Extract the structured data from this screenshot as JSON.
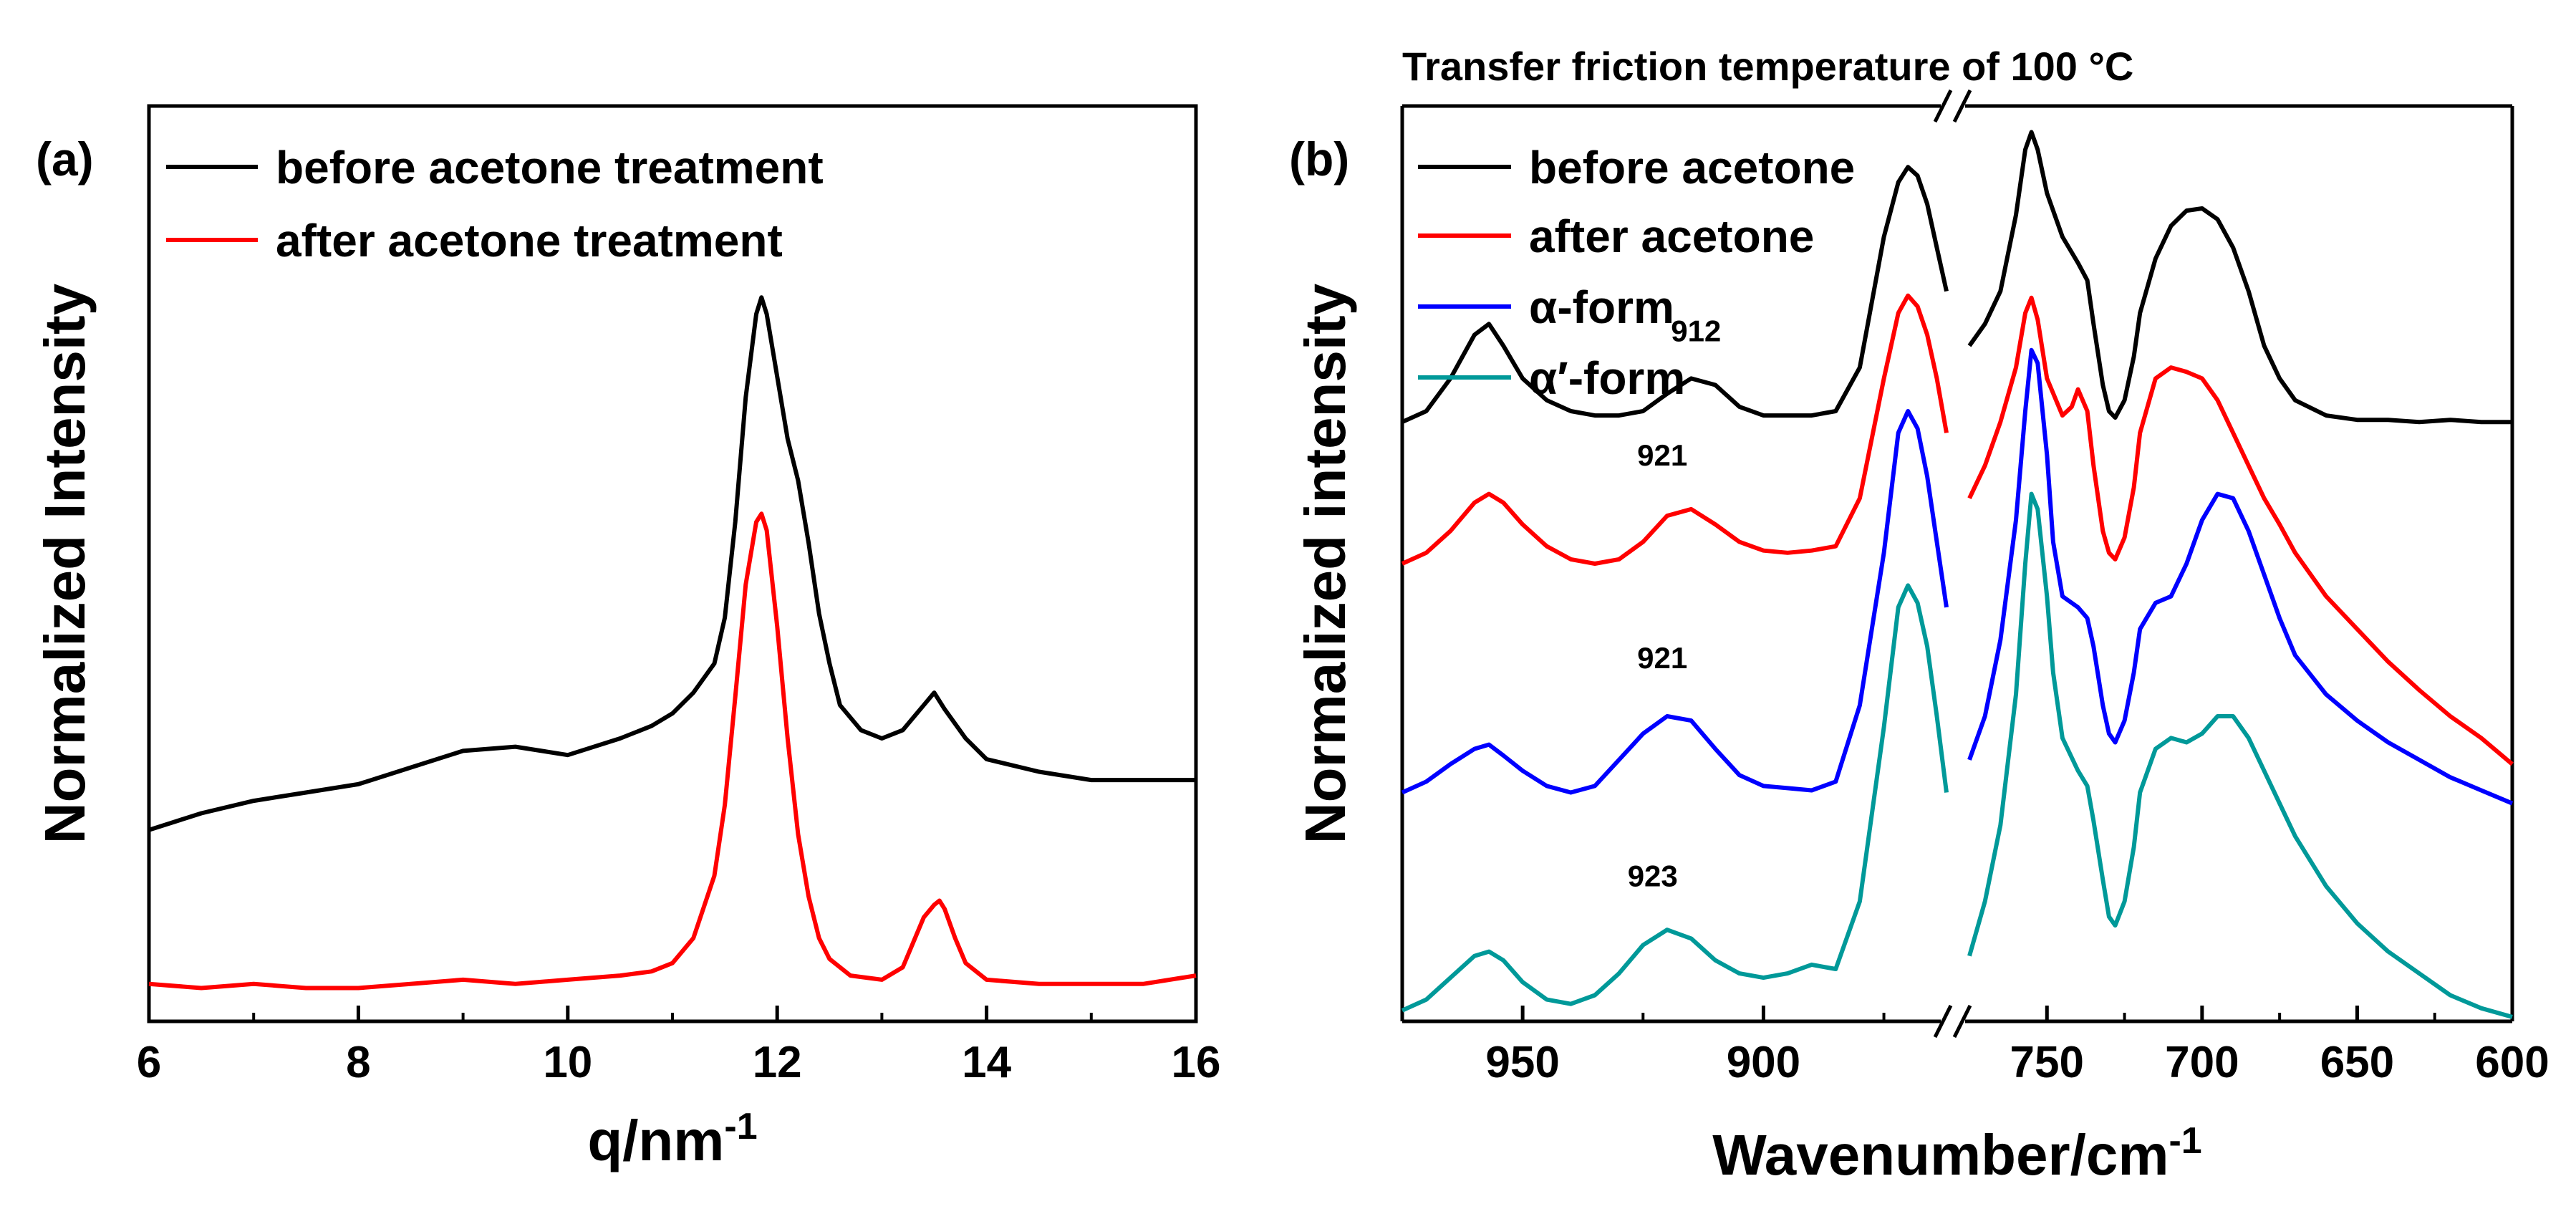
{
  "figure": {
    "panel_a_label": "(a)",
    "panel_b_label": "(b)",
    "title_b": "Transfer friction temperature of 100 °C"
  },
  "chart_data": [
    {
      "type": "line",
      "panel": "(a)",
      "title": "",
      "xlabel": "q/nm-1",
      "xlabel_main": "q/nm",
      "xlabel_sup": "-1",
      "ylabel": "Normalized Intensity",
      "xlim": [
        6,
        16
      ],
      "ylim": [
        0,
        2.2
      ],
      "xticks": [
        "6",
        "8",
        "10",
        "12",
        "14",
        "16"
      ],
      "legend_position": "top-left",
      "series": [
        {
          "name": "before acetone treatment",
          "color": "#000000",
          "x": [
            6.0,
            6.5,
            7.0,
            7.5,
            8.0,
            8.5,
            9.0,
            9.5,
            10.0,
            10.5,
            10.8,
            11.0,
            11.2,
            11.4,
            11.5,
            11.6,
            11.7,
            11.8,
            11.85,
            11.9,
            12.0,
            12.1,
            12.2,
            12.3,
            12.4,
            12.5,
            12.6,
            12.8,
            13.0,
            13.2,
            13.4,
            13.5,
            13.6,
            13.8,
            14.0,
            14.5,
            15.0,
            15.5,
            16.0
          ],
          "y": [
            0.46,
            0.5,
            0.53,
            0.55,
            0.57,
            0.61,
            0.65,
            0.66,
            0.64,
            0.68,
            0.71,
            0.74,
            0.79,
            0.86,
            0.97,
            1.2,
            1.5,
            1.7,
            1.74,
            1.7,
            1.55,
            1.4,
            1.3,
            1.15,
            0.98,
            0.86,
            0.76,
            0.7,
            0.68,
            0.7,
            0.76,
            0.79,
            0.75,
            0.68,
            0.63,
            0.6,
            0.58,
            0.58,
            0.58
          ]
        },
        {
          "name": "after acetone treatment",
          "color": "#ff0000",
          "x": [
            6.0,
            6.5,
            7.0,
            7.5,
            8.0,
            8.5,
            9.0,
            9.5,
            10.0,
            10.5,
            10.8,
            11.0,
            11.2,
            11.4,
            11.5,
            11.6,
            11.7,
            11.8,
            11.85,
            11.9,
            12.0,
            12.1,
            12.2,
            12.3,
            12.4,
            12.5,
            12.7,
            13.0,
            13.2,
            13.3,
            13.4,
            13.5,
            13.55,
            13.6,
            13.7,
            13.8,
            14.0,
            14.5,
            15.0,
            15.5,
            16.0
          ],
          "y": [
            0.09,
            0.08,
            0.09,
            0.08,
            0.08,
            0.09,
            0.1,
            0.09,
            0.1,
            0.11,
            0.12,
            0.14,
            0.2,
            0.35,
            0.52,
            0.78,
            1.05,
            1.2,
            1.22,
            1.18,
            0.95,
            0.68,
            0.45,
            0.3,
            0.2,
            0.15,
            0.11,
            0.1,
            0.13,
            0.19,
            0.25,
            0.28,
            0.29,
            0.27,
            0.2,
            0.14,
            0.1,
            0.09,
            0.09,
            0.09,
            0.11
          ]
        }
      ]
    },
    {
      "type": "line",
      "panel": "(b)",
      "title": "Transfer friction temperature of 100 °C",
      "xlabel": "Wavenumber/cm-1",
      "xlabel_main": "Wavenumber/cm",
      "xlabel_sup": "-1",
      "ylabel": "Normalized intensity",
      "axis_break": [
        862,
        775
      ],
      "xlim_left": [
        975,
        862
      ],
      "xlim_right": [
        775,
        600
      ],
      "ylim": [
        0,
        4.2
      ],
      "xticks_left": [
        "950",
        "900"
      ],
      "xticks_right": [
        "750",
        "700",
        "650",
        "600"
      ],
      "legend_position": "top-left",
      "series": [
        {
          "name": "before acetone",
          "color": "#000000",
          "segments": [
            {
              "x": [
                975,
                970,
                965,
                960,
                957,
                954,
                950,
                945,
                940,
                935,
                930,
                925,
                920,
                915,
                910,
                905,
                900,
                895,
                890,
                885,
                880,
                875,
                872,
                870,
                868,
                866,
                864,
                862
              ],
              "y": [
                2.75,
                2.8,
                2.95,
                3.15,
                3.2,
                3.1,
                2.95,
                2.85,
                2.8,
                2.78,
                2.78,
                2.8,
                2.88,
                2.95,
                2.92,
                2.82,
                2.78,
                2.78,
                2.78,
                2.8,
                3.0,
                3.6,
                3.85,
                3.92,
                3.88,
                3.75,
                3.55,
                3.35
              ]
            },
            {
              "x": [
                775,
                770,
                765,
                760,
                757,
                755,
                753,
                750,
                745,
                740,
                737,
                735,
                732,
                730,
                728,
                725,
                722,
                720,
                715,
                710,
                705,
                700,
                695,
                690,
                685,
                680,
                675,
                670,
                660,
                650,
                640,
                630,
                620,
                610,
                600
              ],
              "y": [
                3.1,
                3.2,
                3.35,
                3.7,
                4.0,
                4.08,
                4.0,
                3.8,
                3.6,
                3.48,
                3.4,
                3.2,
                2.92,
                2.8,
                2.77,
                2.85,
                3.05,
                3.25,
                3.5,
                3.65,
                3.72,
                3.73,
                3.68,
                3.55,
                3.35,
                3.1,
                2.95,
                2.85,
                2.78,
                2.76,
                2.76,
                2.75,
                2.76,
                2.75,
                2.75
              ]
            }
          ]
        },
        {
          "name": "after acetone",
          "color": "#ff0000",
          "segments": [
            {
              "x": [
                975,
                970,
                965,
                960,
                957,
                954,
                950,
                945,
                940,
                935,
                930,
                925,
                920,
                915,
                910,
                905,
                900,
                895,
                890,
                885,
                880,
                875,
                872,
                870,
                868,
                866,
                864,
                862
              ],
              "y": [
                2.1,
                2.15,
                2.25,
                2.38,
                2.42,
                2.38,
                2.28,
                2.18,
                2.12,
                2.1,
                2.12,
                2.2,
                2.32,
                2.35,
                2.28,
                2.2,
                2.16,
                2.15,
                2.16,
                2.18,
                2.4,
                2.95,
                3.25,
                3.33,
                3.28,
                3.15,
                2.95,
                2.7
              ]
            },
            {
              "x": [
                775,
                770,
                765,
                760,
                757,
                755,
                753,
                750,
                745,
                742,
                740,
                737,
                735,
                732,
                730,
                728,
                725,
                722,
                720,
                715,
                710,
                705,
                700,
                695,
                690,
                685,
                680,
                675,
                670,
                660,
                650,
                640,
                630,
                620,
                610,
                600
              ],
              "y": [
                2.4,
                2.55,
                2.75,
                3.0,
                3.25,
                3.32,
                3.22,
                2.95,
                2.78,
                2.82,
                2.9,
                2.8,
                2.55,
                2.25,
                2.15,
                2.12,
                2.22,
                2.45,
                2.7,
                2.95,
                3.0,
                2.98,
                2.95,
                2.85,
                2.7,
                2.55,
                2.4,
                2.28,
                2.15,
                1.95,
                1.8,
                1.65,
                1.52,
                1.4,
                1.3,
                1.18
              ]
            }
          ]
        },
        {
          "name": "α-form",
          "color": "#0000ff",
          "segments": [
            {
              "x": [
                975,
                970,
                965,
                960,
                957,
                954,
                950,
                945,
                940,
                935,
                930,
                925,
                920,
                915,
                910,
                905,
                900,
                895,
                890,
                885,
                880,
                875,
                872,
                870,
                868,
                866,
                864,
                862
              ],
              "y": [
                1.05,
                1.1,
                1.18,
                1.25,
                1.27,
                1.22,
                1.15,
                1.08,
                1.05,
                1.08,
                1.2,
                1.32,
                1.4,
                1.38,
                1.25,
                1.13,
                1.08,
                1.07,
                1.06,
                1.1,
                1.45,
                2.15,
                2.7,
                2.8,
                2.72,
                2.5,
                2.2,
                1.9
              ]
            },
            {
              "x": [
                775,
                770,
                765,
                760,
                757,
                755,
                753,
                750,
                748,
                745,
                740,
                737,
                735,
                732,
                730,
                728,
                725,
                722,
                720,
                715,
                710,
                705,
                700,
                695,
                690,
                685,
                680,
                675,
                670,
                660,
                650,
                640,
                630,
                620,
                610,
                600
              ],
              "y": [
                1.2,
                1.4,
                1.75,
                2.3,
                2.8,
                3.08,
                3.02,
                2.6,
                2.2,
                1.95,
                1.9,
                1.85,
                1.72,
                1.45,
                1.32,
                1.28,
                1.38,
                1.6,
                1.8,
                1.92,
                1.95,
                2.1,
                2.3,
                2.42,
                2.4,
                2.25,
                2.05,
                1.85,
                1.68,
                1.5,
                1.38,
                1.28,
                1.2,
                1.12,
                1.06,
                1.0
              ]
            }
          ]
        },
        {
          "name": "α′-form",
          "color": "#009999",
          "segments": [
            {
              "x": [
                975,
                970,
                965,
                960,
                957,
                954,
                950,
                945,
                940,
                935,
                930,
                925,
                920,
                915,
                910,
                905,
                900,
                895,
                890,
                885,
                880,
                875,
                872,
                870,
                868,
                866,
                864,
                862
              ],
              "y": [
                0.05,
                0.1,
                0.2,
                0.3,
                0.32,
                0.28,
                0.18,
                0.1,
                0.08,
                0.12,
                0.22,
                0.35,
                0.42,
                0.38,
                0.28,
                0.22,
                0.2,
                0.22,
                0.26,
                0.24,
                0.55,
                1.35,
                1.9,
                2.0,
                1.92,
                1.72,
                1.4,
                1.05
              ]
            },
            {
              "x": [
                775,
                770,
                765,
                760,
                757,
                755,
                753,
                750,
                748,
                745,
                740,
                737,
                735,
                732,
                730,
                728,
                725,
                722,
                720,
                715,
                710,
                705,
                700,
                695,
                690,
                685,
                680,
                675,
                670,
                660,
                650,
                640,
                630,
                620,
                610,
                600
              ],
              "y": [
                0.3,
                0.55,
                0.9,
                1.5,
                2.1,
                2.42,
                2.35,
                1.95,
                1.6,
                1.3,
                1.15,
                1.08,
                0.92,
                0.65,
                0.48,
                0.44,
                0.55,
                0.8,
                1.05,
                1.25,
                1.3,
                1.28,
                1.32,
                1.4,
                1.4,
                1.3,
                1.15,
                1.0,
                0.85,
                0.62,
                0.45,
                0.32,
                0.22,
                0.12,
                0.06,
                0.02
              ]
            }
          ]
        }
      ],
      "annotations": [
        {
          "text": "912",
          "x": 914,
          "y": 3.12
        },
        {
          "text": "921",
          "x": 921,
          "y": 2.55
        },
        {
          "text": "921",
          "x": 921,
          "y": 1.62
        },
        {
          "text": "923",
          "x": 923,
          "y": 0.62
        }
      ]
    }
  ]
}
